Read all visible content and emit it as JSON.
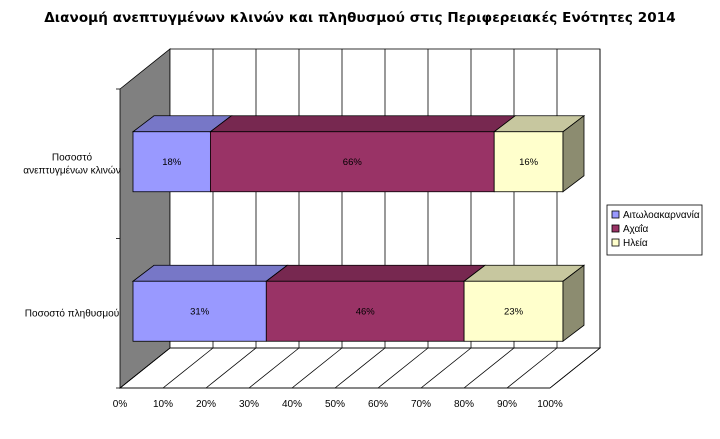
{
  "chart_data": {
    "type": "bar",
    "orientation": "horizontal",
    "stacked": "percent",
    "three_d": true,
    "title": "Διανομή ανεπτυγμένων κλινών και πληθυσμού στις Περιφερειακές Ενότητες 2014",
    "categories": [
      "Ποσοστό ανεπτυγμένων κλινών",
      "Ποσοστό πληθυσμού"
    ],
    "category_lines": [
      [
        "Ποσοστό",
        "ανεπτυγμένων κλινών"
      ],
      [
        "Ποσοστό πληθυσμού"
      ]
    ],
    "series": [
      {
        "name": "Αιτωλοακαρνανία",
        "values": [
          18,
          31
        ],
        "labels": [
          "18%",
          "31%"
        ],
        "color": "#9999ff"
      },
      {
        "name": "Αχαΐα",
        "values": [
          66,
          46
        ],
        "labels": [
          "66%",
          "46%"
        ],
        "color": "#993366"
      },
      {
        "name": "Ηλεία",
        "values": [
          16,
          23
        ],
        "labels": [
          "16%",
          "23%"
        ],
        "color": "#ffffcc"
      }
    ],
    "x_ticks": [
      "0%",
      "10%",
      "20%",
      "30%",
      "40%",
      "50%",
      "60%",
      "70%",
      "80%",
      "90%",
      "100%"
    ],
    "xlim": [
      0,
      100
    ],
    "grid": true,
    "legend": "right"
  }
}
